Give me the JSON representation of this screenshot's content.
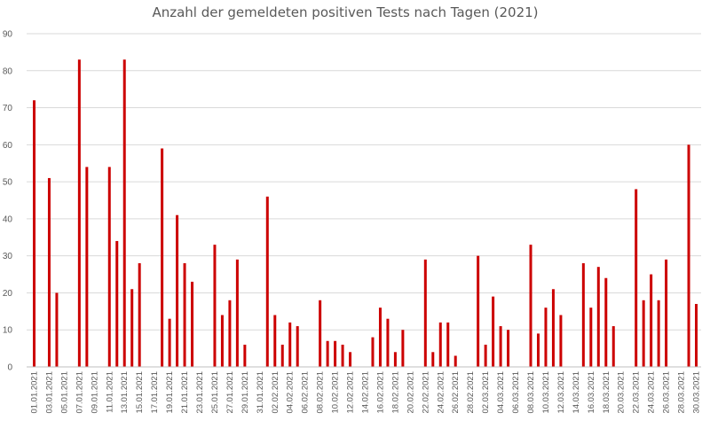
{
  "chart_data": {
    "type": "bar",
    "title": "Anzahl der gemeldeten positiven Tests nach Tagen (2021)",
    "xlabel": "",
    "ylabel": "",
    "ylim": [
      0,
      90
    ],
    "yticks": [
      0,
      10,
      20,
      30,
      40,
      50,
      60,
      70,
      80,
      90
    ],
    "grid": true,
    "legend": "none",
    "bar_color": "#cc0000",
    "categories": [
      "01.01.2021",
      "02.01.2021",
      "03.01.2021",
      "04.01.2021",
      "05.01.2021",
      "06.01.2021",
      "07.01.2021",
      "08.01.2021",
      "09.01.2021",
      "10.01.2021",
      "11.01.2021",
      "12.01.2021",
      "13.01.2021",
      "14.01.2021",
      "15.01.2021",
      "16.01.2021",
      "17.01.2021",
      "18.01.2021",
      "19.01.2021",
      "20.01.2021",
      "21.01.2021",
      "22.01.2021",
      "23.01.2021",
      "24.01.2021",
      "25.01.2021",
      "26.01.2021",
      "27.01.2021",
      "28.01.2021",
      "29.01.2021",
      "30.01.2021",
      "31.01.2021",
      "01.02.2021",
      "02.02.2021",
      "03.02.2021",
      "04.02.2021",
      "05.02.2021",
      "06.02.2021",
      "07.02.2021",
      "08.02.2021",
      "09.02.2021",
      "10.02.2021",
      "11.02.2021",
      "12.02.2021",
      "13.02.2021",
      "14.02.2021",
      "15.02.2021",
      "16.02.2021",
      "17.02.2021",
      "18.02.2021",
      "19.02.2021",
      "20.02.2021",
      "21.02.2021",
      "22.02.2021",
      "23.02.2021",
      "24.02.2021",
      "25.02.2021",
      "26.02.2021",
      "27.02.2021",
      "28.02.2021",
      "01.03.2021",
      "02.03.2021",
      "03.03.2021",
      "04.03.2021",
      "05.03.2021",
      "06.03.2021",
      "07.03.2021",
      "08.03.2021",
      "09.03.2021",
      "10.03.2021",
      "11.03.2021",
      "12.03.2021",
      "13.03.2021",
      "14.03.2021",
      "15.03.2021",
      "16.03.2021",
      "17.03.2021",
      "18.03.2021",
      "19.03.2021",
      "20.03.2021",
      "21.03.2021",
      "22.03.2021",
      "23.03.2021",
      "24.03.2021",
      "25.03.2021",
      "26.03.2021",
      "27.03.2021",
      "28.03.2021",
      "29.03.2021",
      "30.03.2021"
    ],
    "tick_labels": [
      "01.01.2021",
      "03.01.2021",
      "05.01.2021",
      "07.01.2021",
      "09.01.2021",
      "11.01.2021",
      "13.01.2021",
      "15.01.2021",
      "17.01.2021",
      "19.01.2021",
      "21.01.2021",
      "23.01.2021",
      "25.01.2021",
      "27.01.2021",
      "29.01.2021",
      "31.01.2021",
      "02.02.2021",
      "04.02.2021",
      "06.02.2021",
      "08.02.2021",
      "10.02.2021",
      "12.02.2021",
      "14.02.2021",
      "16.02.2021",
      "18.02.2021",
      "20.02.2021",
      "22.02.2021",
      "24.02.2021",
      "26.02.2021",
      "28.02.2021",
      "02.03.2021",
      "04.03.2021",
      "06.03.2021",
      "08.03.2021",
      "10.03.2021",
      "12.03.2021",
      "14.03.2021",
      "16.03.2021",
      "18.03.2021",
      "20.03.2021",
      "22.03.2021",
      "24.03.2021",
      "26.03.2021",
      "28.03.2021",
      "30.03.2021"
    ],
    "series": [
      {
        "values": [
          72,
          0,
          51,
          20,
          0,
          0,
          83,
          54,
          0,
          0,
          54,
          34,
          83,
          21,
          28,
          0,
          0,
          59,
          13,
          41,
          28,
          23,
          0,
          0,
          33,
          14,
          18,
          29,
          6,
          0,
          0,
          46,
          14,
          6,
          12,
          11,
          0,
          0,
          18,
          7,
          7,
          6,
          4,
          0,
          0,
          8,
          16,
          13,
          4,
          10,
          0,
          0,
          29,
          4,
          12,
          12,
          3,
          0,
          0,
          30,
          6,
          19,
          11,
          10,
          0,
          0,
          33,
          9,
          16,
          21,
          14,
          0,
          0,
          28,
          16,
          27,
          24,
          11,
          0,
          0,
          48,
          18,
          25,
          18,
          29,
          0,
          0,
          60,
          17
        ]
      }
    ]
  }
}
